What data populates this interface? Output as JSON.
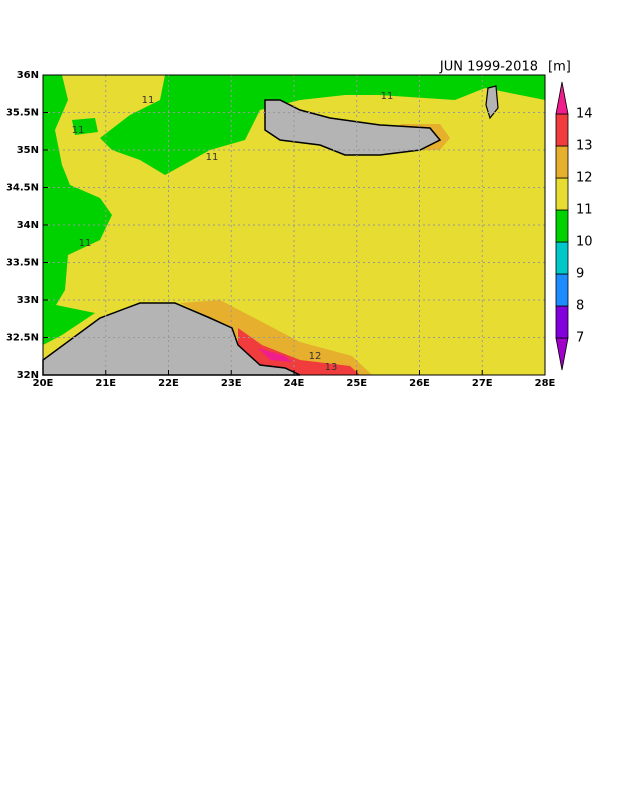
{
  "chart_data": {
    "type": "contour-map",
    "title": "JUN 1999-2018",
    "unit": "[m]",
    "xlim": [
      20,
      28
    ],
    "ylim": [
      32,
      36
    ],
    "xticks": [
      {
        "value": 20,
        "label": "20E"
      },
      {
        "value": 21,
        "label": "21E"
      },
      {
        "value": 22,
        "label": "22E"
      },
      {
        "value": 23,
        "label": "23E"
      },
      {
        "value": 24,
        "label": "24E"
      },
      {
        "value": 25,
        "label": "25E"
      },
      {
        "value": 26,
        "label": "26E"
      },
      {
        "value": 27,
        "label": "27E"
      },
      {
        "value": 28,
        "label": "28E"
      }
    ],
    "yticks": [
      {
        "value": 32,
        "label": "32N"
      },
      {
        "value": 32.5,
        "label": "32.5N"
      },
      {
        "value": 33,
        "label": "33N"
      },
      {
        "value": 33.5,
        "label": "33.5N"
      },
      {
        "value": 34,
        "label": "34N"
      },
      {
        "value": 34.5,
        "label": "34.5N"
      },
      {
        "value": 35,
        "label": "35N"
      },
      {
        "value": 35.5,
        "label": "35.5N"
      },
      {
        "value": 36,
        "label": "36N"
      }
    ],
    "grid": true,
    "colorbar": {
      "levels": [
        7,
        8,
        9,
        10,
        11,
        12,
        13,
        14
      ],
      "colors": [
        "#a000c8",
        "#8200dc",
        "#1e8cff",
        "#00c8c8",
        "#00d200",
        "#e6dc32",
        "#e6af2d",
        "#f03c3c",
        "#f01e8c"
      ]
    },
    "contour_labels": [
      11,
      11,
      11,
      11,
      11,
      12,
      13
    ]
  }
}
